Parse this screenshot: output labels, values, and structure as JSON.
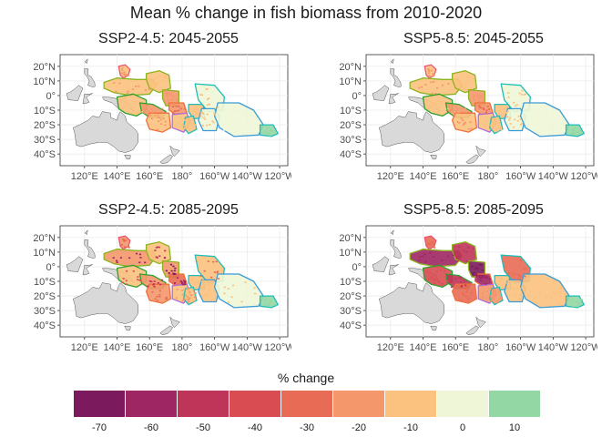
{
  "title": "Mean % change in fish biomass from 2010-2020",
  "panels": [
    {
      "title": "SSP2-4.5: 2045-2055",
      "intensity": 0
    },
    {
      "title": "SSP5-8.5: 2045-2055",
      "intensity": 0
    },
    {
      "title": "SSP2-4.5: 2085-2095",
      "intensity": 1
    },
    {
      "title": "SSP5-8.5: 2085-2095",
      "intensity": 2
    }
  ],
  "axes": {
    "lat_labels": [
      "20°N",
      "10°N",
      "0°",
      "10°S",
      "20°S",
      "30°S",
      "40°S"
    ],
    "lat_values": [
      20,
      10,
      0,
      -10,
      -20,
      -30,
      -40
    ],
    "lon_labels": [
      "120°E",
      "140°E",
      "160°E",
      "180°",
      "160°W",
      "140°W",
      "120°W"
    ],
    "lon_values": [
      120,
      140,
      160,
      180,
      200,
      220,
      240
    ]
  },
  "legend": {
    "title": "% change",
    "colors": [
      "#7b1a5c",
      "#9e2662",
      "#bf3459",
      "#d84c52",
      "#e86c55",
      "#f4976a",
      "#fbc17e",
      "#eef6d7",
      "#93d7a4"
    ],
    "labels": [
      "-70",
      "-60",
      "-50",
      "-40",
      "-30",
      "-20",
      "-10",
      "0",
      "10"
    ]
  },
  "colors": {
    "land": "#d9d9d9",
    "eez_outline_green": "#2ca02c",
    "eez_outline_teal": "#1fbcb8",
    "eez_outline_purple": "#b06bd8",
    "eez_outline_pink": "#e8546e",
    "eez_outline_olive": "#8cb41e",
    "eez_outline_blue": "#3a9bd6",
    "eez_outline_orange": "#f0703c"
  }
}
